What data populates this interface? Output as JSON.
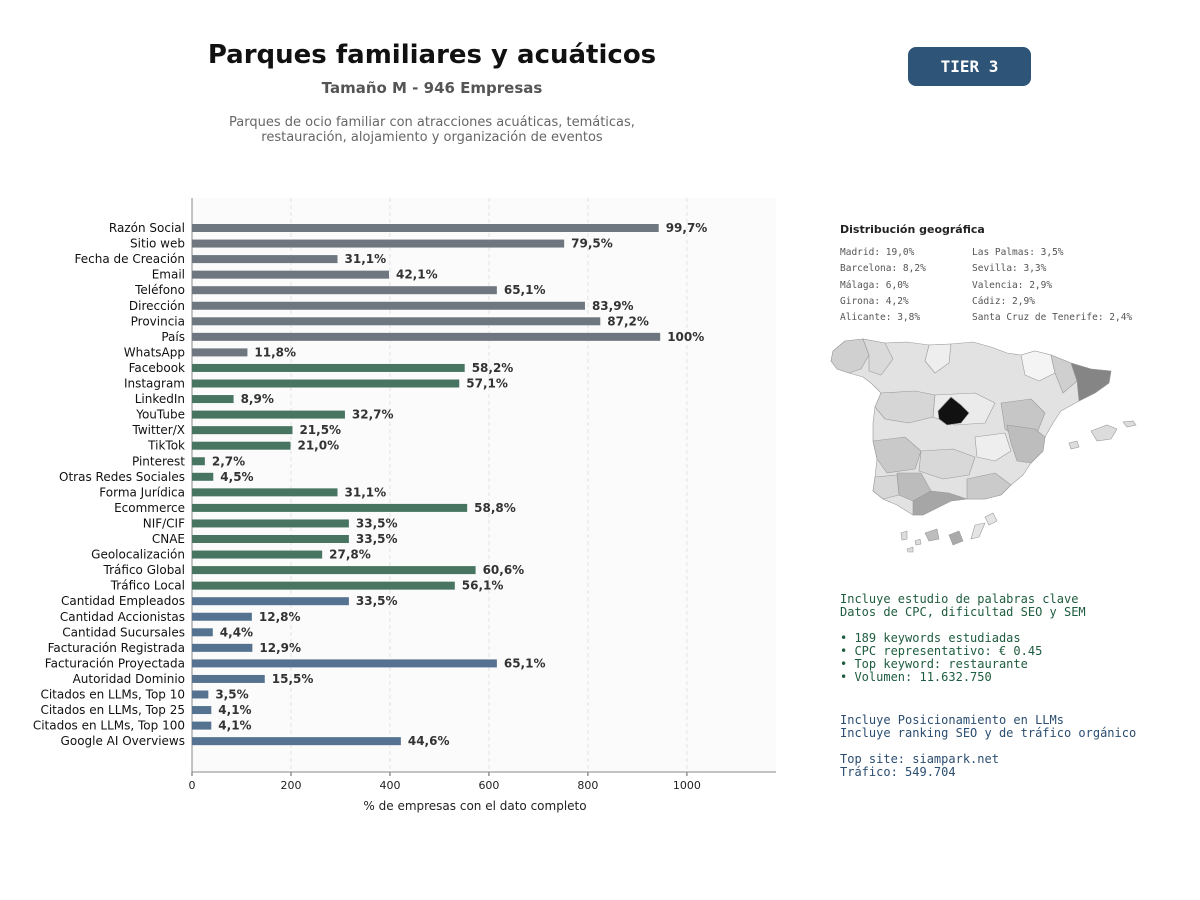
{
  "header": {
    "title": "Parques familiares y acuáticos",
    "subtitle": "Tamaño M - 946 Empresas",
    "description_line1": "Parques de ocio familiar con atracciones acuáticas, temáticas,",
    "description_line2": "restauración, alojamiento y organización de eventos",
    "tier": "TIER 3"
  },
  "colors": {
    "basic": "#6e7780",
    "social": "#487562",
    "business": "#557391"
  },
  "chart_data": {
    "type": "bar",
    "orientation": "horizontal",
    "xlabel": "% de empresas con el dato completo",
    "xlim": [
      0,
      1180
    ],
    "xticks": [
      "0",
      "200",
      "400",
      "600",
      "800",
      "1000"
    ],
    "grid": "vertical dashed",
    "categories": [
      "Razón Social",
      "Sitio web",
      "Fecha de Creación",
      "Email",
      "Teléfono",
      "Dirección",
      "Provincia",
      "País",
      "WhatsApp",
      "Facebook",
      "Instagram",
      "LinkedIn",
      "YouTube",
      "Twitter/X",
      "TikTok",
      "Pinterest",
      "Otras Redes Sociales",
      "Forma Jurídica",
      "Ecommerce",
      "NIF/CIF",
      "CNAE",
      "Geolocalización",
      "Tráfico Global",
      "Tráfico Local",
      "Cantidad Empleados",
      "Cantidad Accionistas",
      "Cantidad Sucursales",
      "Facturación Registrada",
      "Facturación Proyectada",
      "Autoridad Dominio",
      "Citados en LLMs, Top 10",
      "Citados en LLMs, Top 25",
      "Citados en LLMs, Top 100",
      "Google AI Overviews"
    ],
    "values": [
      943,
      752,
      294,
      398,
      616,
      794,
      825,
      946,
      112,
      551,
      540,
      84,
      309,
      203,
      199,
      26,
      43,
      294,
      556,
      317,
      317,
      263,
      573,
      531,
      317,
      121,
      42,
      122,
      616,
      147,
      33,
      39,
      39,
      422
    ],
    "labels": [
      "99,7%",
      "79,5%",
      "31,1%",
      "42,1%",
      "65,1%",
      "83,9%",
      "87,2%",
      "100%",
      "11,8%",
      "58,2%",
      "57,1%",
      "8,9%",
      "32,7%",
      "21,5%",
      "21,0%",
      "2,7%",
      "4,5%",
      "31,1%",
      "58,8%",
      "33,5%",
      "33,5%",
      "27,8%",
      "60,6%",
      "56,1%",
      "33,5%",
      "12,8%",
      "4,4%",
      "12,9%",
      "65,1%",
      "15,5%",
      "3,5%",
      "4,1%",
      "4,1%",
      "44,6%"
    ],
    "groups": [
      "basic",
      "basic",
      "basic",
      "basic",
      "basic",
      "basic",
      "basic",
      "basic",
      "basic",
      "social",
      "social",
      "social",
      "social",
      "social",
      "social",
      "social",
      "social",
      "social",
      "social",
      "social",
      "social",
      "social",
      "social",
      "social",
      "business",
      "business",
      "business",
      "business",
      "business",
      "business",
      "business",
      "business",
      "business",
      "business"
    ]
  },
  "geo": {
    "title": "Distribución geográfica",
    "col1": [
      "Madrid: 19,0%",
      "Barcelona: 8,2%",
      "Málaga: 6,0%",
      "Girona: 4,2%",
      "Alicante: 3,8%"
    ],
    "col2": [
      "Las Palmas: 3,5%",
      "Sevilla: 3,3%",
      "Valencia: 2,9%",
      "Cádiz: 2,9%",
      "Santa Cruz de Tenerife: 2,4%"
    ]
  },
  "keywords": {
    "line1": "Incluye estudio de palabras clave",
    "line2": "Datos de CPC, dificultad SEO y SEM",
    "bullet1": "• 189 keywords estudiadas",
    "bullet2": "• CPC representativo: € 0.45",
    "bullet3": "• Top keyword: restaurante",
    "bullet4": "• Volumen: 11.632.750"
  },
  "llm": {
    "line1": "Incluye Posicionamiento en LLMs",
    "line2": "Incluye ranking SEO y de tráfico orgánico",
    "top_site": "Top site: siampark.net",
    "traffic": "Tráfico: 549.704"
  }
}
